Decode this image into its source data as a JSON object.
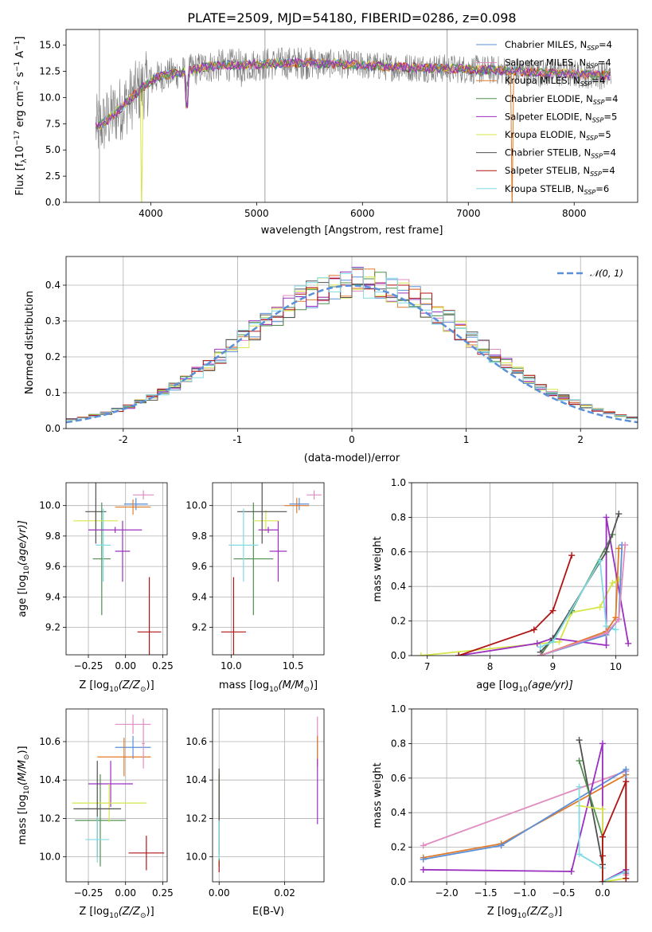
{
  "page_title": "PLATE=2509, MJD=54180, FIBERID=0286, z=0.098",
  "colors": {
    "Chabrier MILES": "#5b8fd8",
    "Salpeter MILES": "#e08cc0",
    "Kroupa MILES": "#e07b2a",
    "Chabrier ELODIE": "#4f8f4f",
    "Salpeter ELODIE": "#9b30c0",
    "Kroupa ELODIE": "#d6e64a",
    "Chabrier STELIB": "#505050",
    "Salpeter STELIB": "#b01515",
    "Kroupa STELIB": "#7fdbe4",
    "data": "#777777",
    "normal": "#5b8fd8"
  },
  "chart_data": [
    {
      "id": "spectrum",
      "type": "line",
      "title": "PLATE=2509, MJD=54180, FIBERID=0286, z=0.098",
      "xlabel": "wavelength [Angstrom, rest frame]",
      "ylabel": "Flux [f",
      "ylabel_parts": [
        "Flux [f",
        "λ",
        "10",
        "−17",
        " erg cm",
        "−2",
        " s",
        "−1",
        " A",
        "−1",
        "]"
      ],
      "xlim": [
        3200,
        8600
      ],
      "ylim": [
        0,
        16.5
      ],
      "xticks": [
        4000,
        5000,
        6000,
        7000,
        8000
      ],
      "yticks": [
        0.0,
        2.5,
        5.0,
        7.5,
        10.0,
        12.5,
        15.0
      ],
      "grid": false,
      "legend_position": "upper-right",
      "continuum": {
        "x": [
          3500,
          3560,
          3650,
          3750,
          3850,
          3950,
          4050,
          4150,
          4300,
          4500,
          4700,
          4900,
          5100,
          5300,
          5500,
          5800,
          6100,
          6400,
          6700,
          7000,
          7300,
          7600,
          7900,
          8200,
          8350
        ],
        "y": [
          7.2,
          7.6,
          8.4,
          9.3,
          10.3,
          11.2,
          11.9,
          12.2,
          12.4,
          12.9,
          13.1,
          13.1,
          13.2,
          13.3,
          13.3,
          13.2,
          13.0,
          12.9,
          12.8,
          12.7,
          12.6,
          12.4,
          12.3,
          12.2,
          12.1
        ]
      },
      "series": [
        {
          "name": "Chabrier MILES, N",
          "sub": "SSP",
          "tail": "=4"
        },
        {
          "name": "Salpeter MILES, N",
          "sub": "SSP",
          "tail": "=4"
        },
        {
          "name": "Kroupa MILES, N",
          "sub": "SSP",
          "tail": "=4"
        },
        {
          "name": "Chabrier ELODIE, N",
          "sub": "SSP",
          "tail": "=4"
        },
        {
          "name": "Salpeter ELODIE, N",
          "sub": "SSP",
          "tail": "=5"
        },
        {
          "name": "Kroupa ELODIE, N",
          "sub": "SSP",
          "tail": "=5"
        },
        {
          "name": "Chabrier STELIB, N",
          "sub": "SSP",
          "tail": "=4"
        },
        {
          "name": "Salpeter STELIB, N",
          "sub": "SSP",
          "tail": "=4"
        },
        {
          "name": "Kroupa STELIB, N",
          "sub": "SSP",
          "tail": "=6"
        }
      ]
    },
    {
      "id": "residuals",
      "type": "line",
      "xlabel": "(data-model)/error",
      "ylabel": "Normed distribution",
      "xlim": [
        -2.5,
        2.5
      ],
      "ylim": [
        0,
        0.48
      ],
      "xticks": [
        -2,
        -1,
        0,
        1,
        2
      ],
      "yticks": [
        0.0,
        0.1,
        0.2,
        0.3,
        0.4
      ],
      "grid": true,
      "legend_position": "upper-right",
      "legend_label": "𝒩(0, 1)",
      "bin_width": 0.1
    },
    {
      "id": "age-vs-Z",
      "type": "scatter",
      "xlabel_pre": "Z [log",
      "xlabel_post": "(Z/Z",
      "xlabel_end": ")]",
      "ylabel_pre": "age  [log",
      "ylabel_post": "(age/yr)]",
      "xlim": [
        -0.4,
        0.28
      ],
      "ylim": [
        9.02,
        10.15
      ],
      "xticks": [
        -0.25,
        0.0,
        0.25
      ],
      "xticklabels": [
        "−0.25",
        "0.00",
        "0.25"
      ],
      "yticks": [
        9.2,
        9.4,
        9.6,
        9.8,
        10.0
      ],
      "grid": true,
      "points": [
        {
          "s": "Chabrier MILES",
          "x": 0.07,
          "xe": 0.08,
          "y": 10.01,
          "ye": 0.04
        },
        {
          "s": "Salpeter MILES",
          "x": 0.12,
          "xe": 0.07,
          "y": 10.07,
          "ye": 0.03
        },
        {
          "s": "Kroupa MILES",
          "x": 0.05,
          "xe": 0.12,
          "y": 9.99,
          "ye": 0.05
        },
        {
          "s": "Chabrier ELODIE",
          "x": -0.16,
          "xe": 0.06,
          "y": 9.65,
          "ye": 0.37
        },
        {
          "s": "Salpeter ELODIE",
          "x": -0.02,
          "xe": 0.05,
          "y": 9.7,
          "ye": 0.2
        },
        {
          "s": "Kroupa ELODIE",
          "x": -0.2,
          "xe": 0.15,
          "y": 9.9,
          "ye": 0.07
        },
        {
          "s": "Chabrier STELIB",
          "x": -0.2,
          "xe": 0.07,
          "y": 9.96,
          "ye": 0.21
        },
        {
          "s": "Salpeter STELIB",
          "x": 0.16,
          "xe": 0.08,
          "y": 9.17,
          "ye": 0.36
        },
        {
          "s": "Kroupa STELIB",
          "x": -0.15,
          "xe": 0.05,
          "y": 9.74,
          "ye": 0.24
        },
        {
          "s": "Salpeter ELODIE",
          "x": -0.07,
          "xe": 0.18,
          "y": 9.84,
          "ye": 0.02
        }
      ]
    },
    {
      "id": "age-vs-mass",
      "type": "scatter",
      "xlabel_pre": "mass [log",
      "xlabel_post": "(M/M",
      "xlabel_end": ")]",
      "xlim": [
        9.85,
        10.75
      ],
      "ylim": [
        9.02,
        10.15
      ],
      "xticks": [
        10.0,
        10.5
      ],
      "xticklabels": [
        "10.0",
        "10.5"
      ],
      "yticks": [
        9.2,
        9.4,
        9.6,
        9.8,
        10.0
      ],
      "grid": true,
      "points": [
        {
          "s": "Chabrier MILES",
          "x": 10.55,
          "xe": 0.08,
          "y": 10.01,
          "ye": 0.04
        },
        {
          "s": "Salpeter MILES",
          "x": 10.67,
          "xe": 0.06,
          "y": 10.07,
          "ye": 0.03
        },
        {
          "s": "Kroupa MILES",
          "x": 10.53,
          "xe": 0.1,
          "y": 10.0,
          "ye": 0.05
        },
        {
          "s": "Chabrier ELODIE",
          "x": 10.18,
          "xe": 0.16,
          "y": 9.65,
          "ye": 0.37
        },
        {
          "s": "Salpeter ELODIE",
          "x": 10.38,
          "xe": 0.07,
          "y": 9.7,
          "ye": 0.2
        },
        {
          "s": "Kroupa ELODIE",
          "x": 10.28,
          "xe": 0.1,
          "y": 9.9,
          "ye": 0.07
        },
        {
          "s": "Chabrier STELIB",
          "x": 10.25,
          "xe": 0.2,
          "y": 9.96,
          "ye": 0.21
        },
        {
          "s": "Salpeter STELIB",
          "x": 10.02,
          "xe": 0.1,
          "y": 9.17,
          "ye": 0.36
        },
        {
          "s": "Kroupa STELIB",
          "x": 10.1,
          "xe": 0.12,
          "y": 9.74,
          "ye": 0.24
        },
        {
          "s": "Salpeter ELODIE",
          "x": 10.3,
          "xe": 0.08,
          "y": 9.84,
          "ye": 0.02
        }
      ]
    },
    {
      "id": "mass-vs-Z",
      "type": "scatter",
      "xlabel_pre": "Z [log",
      "xlabel_post": "(Z/Z",
      "xlabel_end": ")]",
      "ylabel_pre": "mass [log",
      "ylabel_post": "(M/M",
      "ylabel_end": ")]",
      "xlim": [
        -0.4,
        0.28
      ],
      "ylim": [
        9.87,
        10.77
      ],
      "xticks": [
        -0.25,
        0.0,
        0.25
      ],
      "xticklabels": [
        "−0.25",
        "0.00",
        "0.25"
      ],
      "yticks": [
        10.0,
        10.2,
        10.4,
        10.6
      ],
      "grid": true,
      "points": [
        {
          "s": "Chabrier MILES",
          "x": 0.05,
          "xe": 0.12,
          "y": 10.57,
          "ye": 0.06
        },
        {
          "s": "Salpeter MILES",
          "x": 0.05,
          "xe": 0.12,
          "y": 10.69,
          "ye": 0.05
        },
        {
          "s": "Kroupa MILES",
          "x": -0.01,
          "xe": 0.18,
          "y": 10.52,
          "ye": 0.1
        },
        {
          "s": "Chabrier ELODIE",
          "x": -0.17,
          "xe": 0.17,
          "y": 10.19,
          "ye": 0.24
        },
        {
          "s": "Salpeter ELODIE",
          "x": -0.1,
          "xe": 0.15,
          "y": 10.38,
          "ye": 0.12
        },
        {
          "s": "Kroupa ELODIE",
          "x": -0.11,
          "xe": 0.25,
          "y": 10.28,
          "ye": 0.1
        },
        {
          "s": "Chabrier STELIB",
          "x": -0.19,
          "xe": 0.16,
          "y": 10.25,
          "ye": 0.25
        },
        {
          "s": "Salpeter STELIB",
          "x": 0.14,
          "xe": 0.12,
          "y": 10.02,
          "ye": 0.09
        },
        {
          "s": "Kroupa STELIB",
          "x": -0.19,
          "xe": 0.08,
          "y": 10.09,
          "ye": 0.12
        },
        {
          "s": "Salpeter MILES",
          "x": 0.12,
          "xe": 0.01,
          "y": 10.59,
          "ye": 0.13
        }
      ]
    },
    {
      "id": "mass-vs-EBV",
      "type": "scatter",
      "xlabel": "E(B-V)",
      "xlim": [
        -0.002,
        0.032
      ],
      "ylim": [
        9.87,
        10.77
      ],
      "xticks": [
        0.0,
        0.02
      ],
      "xticklabels": [
        "0.00",
        "0.02"
      ],
      "yticks": [
        10.0,
        10.2,
        10.4,
        10.6
      ],
      "grid": true,
      "points": [
        {
          "s": "Chabrier MILES",
          "x": 0.03,
          "xe": 0.0,
          "y": 10.57,
          "ye": 0.06
        },
        {
          "s": "Salpeter MILES",
          "x": 0.03,
          "xe": 0.0,
          "y": 10.66,
          "ye": 0.07
        },
        {
          "s": "Kroupa MILES",
          "x": 0.03,
          "xe": 0.0,
          "y": 10.55,
          "ye": 0.08
        },
        {
          "s": "Salpeter ELODIE",
          "x": 0.03,
          "xe": 0.0,
          "y": 10.34,
          "ye": 0.17
        },
        {
          "s": "Kroupa ELODIE",
          "x": 0.0,
          "xe": 0.0,
          "y": 10.37,
          "ye": 0.08
        },
        {
          "s": "Chabrier ELODIE",
          "x": 0.0,
          "xe": 0.0,
          "y": 10.19,
          "ye": 0.24
        },
        {
          "s": "Chabrier STELIB",
          "x": 0.0,
          "xe": 0.0,
          "y": 10.24,
          "ye": 0.22
        },
        {
          "s": "Salpeter STELIB",
          "x": 0.0,
          "xe": 0.0,
          "y": 9.95,
          "ye": 0.03
        },
        {
          "s": "Kroupa STELIB",
          "x": 0.0,
          "xe": 0.0,
          "y": 10.09,
          "ye": 0.1
        }
      ]
    },
    {
      "id": "weight-vs-age",
      "type": "line",
      "xlabel_pre": "age  [log",
      "xlabel_post": "(age/yr)]",
      "ylabel": "mass weight",
      "xlim": [
        6.75,
        10.35
      ],
      "ylim": [
        0,
        1
      ],
      "xticks": [
        7,
        8,
        9,
        10
      ],
      "yticks": [
        0.0,
        0.2,
        0.4,
        0.6,
        0.8,
        1.0
      ],
      "grid": true,
      "series": [
        {
          "s": "Kroupa ELODIE",
          "pts": [
            [
              6.9,
              0.0
            ],
            [
              9.1,
              0.08
            ],
            [
              9.3,
              0.25
            ],
            [
              9.75,
              0.28
            ],
            [
              9.95,
              0.42
            ],
            [
              10.05,
              0.44
            ]
          ]
        },
        {
          "s": "Chabrier ELODIE",
          "pts": [
            [
              8.8,
              0.0
            ],
            [
              9.0,
              0.1
            ],
            [
              9.3,
              0.26
            ],
            [
              9.95,
              0.7
            ]
          ]
        },
        {
          "s": "Salpeter ELODIE",
          "pts": [
            [
              7.5,
              0.0
            ],
            [
              8.75,
              0.07
            ],
            [
              9.0,
              0.1
            ],
            [
              9.85,
              0.06
            ],
            [
              9.85,
              0.8
            ],
            [
              10.2,
              0.07
            ]
          ]
        },
        {
          "s": "Chabrier STELIB",
          "pts": [
            [
              8.8,
              0.02
            ],
            [
              9.0,
              0.1
            ],
            [
              9.85,
              0.6
            ],
            [
              10.05,
              0.82
            ]
          ]
        },
        {
          "s": "Salpeter STELIB",
          "pts": [
            [
              7.5,
              0.0
            ],
            [
              8.7,
              0.15
            ],
            [
              9.0,
              0.26
            ],
            [
              9.3,
              0.58
            ]
          ]
        },
        {
          "s": "Kroupa STELIB",
          "pts": [
            [
              8.8,
              0.05
            ],
            [
              9.0,
              0.08
            ],
            [
              9.75,
              0.55
            ],
            [
              9.85,
              0.17
            ],
            [
              10.0,
              0.15
            ]
          ]
        },
        {
          "s": "Chabrier MILES",
          "pts": [
            [
              8.8,
              0.0
            ],
            [
              9.85,
              0.12
            ],
            [
              10.05,
              0.21
            ],
            [
              10.1,
              0.64
            ]
          ]
        },
        {
          "s": "Kroupa MILES",
          "pts": [
            [
              8.8,
              0.0
            ],
            [
              9.85,
              0.14
            ],
            [
              10.0,
              0.22
            ],
            [
              10.05,
              0.62
            ]
          ]
        },
        {
          "s": "Salpeter MILES",
          "pts": [
            [
              8.8,
              0.0
            ],
            [
              9.85,
              0.13
            ],
            [
              10.05,
              0.21
            ],
            [
              10.15,
              0.64
            ]
          ]
        }
      ]
    },
    {
      "id": "weight-vs-Z",
      "type": "line",
      "xlabel_pre": "Z [log",
      "xlabel_post": "(Z/Z",
      "xlabel_end": ")]",
      "ylabel": "mass weight",
      "xlim": [
        -2.45,
        0.45
      ],
      "ylim": [
        0,
        1
      ],
      "xticks": [
        -2.0,
        -1.5,
        -1.0,
        -0.5,
        0.0
      ],
      "xticklabels": [
        "−2.0",
        "−1.5",
        "−1.0",
        "−0.5",
        "0.0"
      ],
      "yticks": [
        0.0,
        0.2,
        0.4,
        0.6,
        0.8,
        1.0
      ],
      "grid": true,
      "series": [
        {
          "s": "Salpeter MILES",
          "pts": [
            [
              -2.3,
              0.21
            ],
            [
              0.3,
              0.64
            ],
            [
              0.3,
              0.04
            ]
          ]
        },
        {
          "s": "Kroupa MILES",
          "pts": [
            [
              -2.3,
              0.14
            ],
            [
              -1.3,
              0.22
            ],
            [
              0.3,
              0.62
            ],
            [
              0.3,
              0.02
            ]
          ]
        },
        {
          "s": "Chabrier MILES",
          "pts": [
            [
              -2.3,
              0.13
            ],
            [
              -1.3,
              0.21
            ],
            [
              0.3,
              0.65
            ],
            [
              0.3,
              0.05
            ]
          ]
        },
        {
          "s": "Salpeter ELODIE",
          "pts": [
            [
              -2.3,
              0.07
            ],
            [
              -0.4,
              0.06
            ],
            [
              0.0,
              0.8
            ],
            [
              0.0,
              0.0
            ],
            [
              0.3,
              0.07
            ]
          ]
        },
        {
          "s": "Chabrier STELIB",
          "pts": [
            [
              -0.3,
              0.82
            ],
            [
              0.0,
              0.1
            ],
            [
              0.0,
              0.0
            ]
          ]
        },
        {
          "s": "Chabrier ELODIE",
          "pts": [
            [
              -0.3,
              0.7
            ],
            [
              0.0,
              0.26
            ],
            [
              0.0,
              0.0
            ]
          ]
        },
        {
          "s": "Kroupa ELODIE",
          "pts": [
            [
              -0.3,
              0.44
            ],
            [
              0.0,
              0.42
            ],
            [
              0.0,
              0.0
            ],
            [
              0.3,
              0.02
            ]
          ]
        },
        {
          "s": "Kroupa STELIB",
          "pts": [
            [
              -0.3,
              0.55
            ],
            [
              -0.3,
              0.16
            ],
            [
              0.0,
              0.08
            ],
            [
              0.0,
              0.0
            ],
            [
              0.3,
              0.06
            ]
          ]
        },
        {
          "s": "Salpeter STELIB",
          "pts": [
            [
              0.0,
              0.0
            ],
            [
              0.0,
              0.15
            ],
            [
              0.0,
              0.26
            ],
            [
              0.3,
              0.58
            ],
            [
              0.3,
              0.02
            ]
          ]
        }
      ]
    }
  ]
}
